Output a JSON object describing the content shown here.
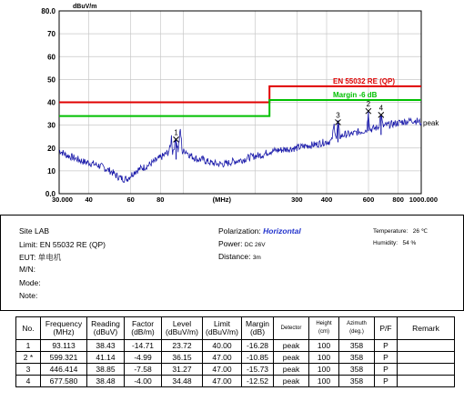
{
  "chart_data": {
    "type": "line",
    "y_unit": "dBuV/m",
    "y_ticks": [
      "80.0",
      "70",
      "60",
      "50",
      "40",
      "30",
      "20",
      "10",
      "0.0"
    ],
    "ylim": [
      0,
      80
    ],
    "x_scale": "log",
    "xlim": [
      30,
      1000
    ],
    "x_ticks": [
      {
        "v": 30,
        "label": "30.000"
      },
      {
        "v": 40,
        "label": "40"
      },
      {
        "v": 60,
        "label": "60"
      },
      {
        "v": 80,
        "label": "80"
      },
      {
        "v": 300,
        "label": "300"
      },
      {
        "v": 400,
        "label": "400"
      },
      {
        "v": 600,
        "label": "600"
      },
      {
        "v": 800,
        "label": "800"
      },
      {
        "v": 1000,
        "label": "1000.000"
      }
    ],
    "x_unit": "(MHz)",
    "limit_lines": [
      {
        "name": "EN 55032 RE (QP)",
        "color": "#e00000",
        "segments": [
          [
            30,
            40
          ],
          [
            230,
            40
          ],
          [
            230,
            47
          ],
          [
            1000,
            47
          ]
        ]
      },
      {
        "name": "Margin -6 dB",
        "color": "#00c000",
        "segments": [
          [
            30,
            34
          ],
          [
            230,
            34
          ],
          [
            230,
            41
          ],
          [
            1000,
            41
          ]
        ]
      }
    ],
    "series": [
      {
        "name": "peak",
        "color": "#1a1aaa",
        "points": [
          [
            30,
            19
          ],
          [
            32,
            17
          ],
          [
            34,
            16
          ],
          [
            36,
            15
          ],
          [
            38,
            14
          ],
          [
            40,
            13.5
          ],
          [
            42,
            13
          ],
          [
            45,
            12
          ],
          [
            48,
            10.5
          ],
          [
            50,
            9.5
          ],
          [
            52,
            8
          ],
          [
            54,
            7
          ],
          [
            56,
            6.5
          ],
          [
            58,
            6.5
          ],
          [
            60,
            8
          ],
          [
            63,
            10
          ],
          [
            66,
            11
          ],
          [
            70,
            12
          ],
          [
            74,
            13.5
          ],
          [
            78,
            15
          ],
          [
            82,
            16.5
          ],
          [
            86,
            18
          ],
          [
            88,
            20
          ],
          [
            89,
            25
          ],
          [
            90,
            18
          ],
          [
            93.113,
            23.72
          ],
          [
            95,
            19
          ],
          [
            97,
            28
          ],
          [
            99,
            18
          ],
          [
            102,
            19
          ],
          [
            106,
            17
          ],
          [
            110,
            16
          ],
          [
            115,
            15
          ],
          [
            120,
            15
          ],
          [
            130,
            13.5
          ],
          [
            140,
            13
          ],
          [
            150,
            13
          ],
          [
            160,
            14
          ],
          [
            170,
            14.5
          ],
          [
            180,
            15
          ],
          [
            190,
            16
          ],
          [
            200,
            16.5
          ],
          [
            215,
            17
          ],
          [
            230,
            18.5
          ],
          [
            250,
            19
          ],
          [
            270,
            19.5
          ],
          [
            300,
            20
          ],
          [
            330,
            21
          ],
          [
            360,
            21.5
          ],
          [
            390,
            22.5
          ],
          [
            420,
            23
          ],
          [
            430,
            30
          ],
          [
            440,
            24
          ],
          [
            446.414,
            31.27
          ],
          [
            455,
            25
          ],
          [
            480,
            26
          ],
          [
            510,
            26
          ],
          [
            540,
            27
          ],
          [
            570,
            27.5
          ],
          [
            590,
            28
          ],
          [
            599.321,
            36.15
          ],
          [
            608,
            28
          ],
          [
            630,
            28.5
          ],
          [
            660,
            29
          ],
          [
            677.58,
            34.48
          ],
          [
            690,
            29.5
          ],
          [
            720,
            30
          ],
          [
            760,
            30.5
          ],
          [
            800,
            31
          ],
          [
            850,
            31.5
          ],
          [
            900,
            32
          ],
          [
            950,
            32
          ],
          [
            1000,
            31
          ]
        ]
      }
    ],
    "markers": [
      {
        "label": "1",
        "x": 93.113,
        "y": 23.72
      },
      {
        "label": "2",
        "x": 599.321,
        "y": 36.15
      },
      {
        "label": "3",
        "x": 446.414,
        "y": 31.27
      },
      {
        "label": "4",
        "x": 677.58,
        "y": 34.48
      }
    ],
    "peak_label": "peak"
  },
  "info": {
    "site_label": "Site",
    "site_value": "LAB",
    "limit_label": "Limit:",
    "limit_value": "EN 55032 RE (QP)",
    "eut_label": "EUT:",
    "eut_value": "单电机",
    "mn_label": "M/N:",
    "mode_label": "Mode:",
    "note_label": "Note:",
    "polarization_label": "Polarization:",
    "polarization_value": "Horizontal",
    "power_label": "Power:",
    "power_value": "DC 26V",
    "distance_label": "Distance:",
    "distance_value": "3m",
    "temperature_label": "Temperature:",
    "temperature_value": "26 ℃",
    "humidity_label": "Humidity:",
    "humidity_value": "54 %"
  },
  "table": {
    "headers": [
      "No.",
      "Frequency\n(MHz)",
      "Reading\n(dBuV)",
      "Factor\n(dB/m)",
      "Level\n(dBuV/m)",
      "Limit\n(dBuV/m)",
      "Margin\n(dB)",
      "Detector",
      "Height\n(cm)",
      "Azimuth\n(deg.)",
      "P/F",
      "Remark"
    ],
    "rows": [
      [
        "1",
        "93.113",
        "38.43",
        "-14.71",
        "23.72",
        "40.00",
        "-16.28",
        "peak",
        "100",
        "358",
        "P",
        ""
      ],
      [
        "2 *",
        "599.321",
        "41.14",
        "-4.99",
        "36.15",
        "47.00",
        "-10.85",
        "peak",
        "100",
        "358",
        "P",
        ""
      ],
      [
        "3",
        "446.414",
        "38.85",
        "-7.58",
        "31.27",
        "47.00",
        "-15.73",
        "peak",
        "100",
        "358",
        "P",
        ""
      ],
      [
        "4",
        "677.580",
        "38.48",
        "-4.00",
        "34.48",
        "47.00",
        "-12.52",
        "peak",
        "100",
        "358",
        "P",
        ""
      ]
    ]
  }
}
